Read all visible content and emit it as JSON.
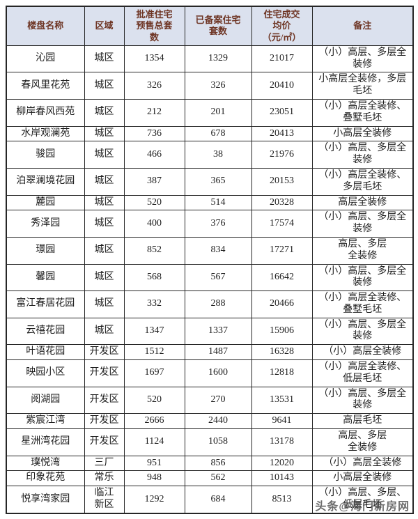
{
  "table": {
    "header_keys": [
      "name",
      "region",
      "approved",
      "registered",
      "price",
      "remark"
    ],
    "headers": [
      "楼盘名称",
      "区域",
      "批准住宅\n预售总套\n数",
      "已备案住宅\n套数",
      "住宅成交\n均价\n（元/㎡）",
      "备注"
    ],
    "rows": [
      {
        "name": "沁园",
        "region": "城区",
        "approved": "1354",
        "registered": "1329",
        "price": "21017",
        "remark": "（小）高层、多层全\n装修"
      },
      {
        "name": "春风里花苑",
        "region": "城区",
        "approved": "326",
        "registered": "326",
        "price": "20410",
        "remark": "小高层全装修，多层\n毛坯"
      },
      {
        "name": "柳岸春风西苑",
        "region": "城区",
        "approved": "212",
        "registered": "201",
        "price": "23051",
        "remark": "（小）高层全装修、\n叠墅毛坯"
      },
      {
        "name": "水岸观澜苑",
        "region": "城区",
        "approved": "736",
        "registered": "678",
        "price": "20413",
        "remark": "小高层全装修"
      },
      {
        "name": "骏园",
        "region": "城区",
        "approved": "466",
        "registered": "38",
        "price": "21976",
        "remark": "（小）高层、多层全\n装修"
      },
      {
        "name": "泊翠澜境花园",
        "region": "城区",
        "approved": "387",
        "registered": "365",
        "price": "20153",
        "remark": "（小）高层全装修、\n多层毛坯"
      },
      {
        "name": "麓园",
        "region": "城区",
        "approved": "520",
        "registered": "514",
        "price": "20328",
        "remark": "高层全装修"
      },
      {
        "name": "秀泽园",
        "region": "城区",
        "approved": "400",
        "registered": "376",
        "price": "17574",
        "remark": "（小）高层、多层全\n装修"
      },
      {
        "name": "璟园",
        "region": "城区",
        "approved": "852",
        "registered": "834",
        "price": "17271",
        "remark": "高层、多层\n全装修"
      },
      {
        "name": "馨园",
        "region": "城区",
        "approved": "568",
        "registered": "567",
        "price": "16642",
        "remark": "（小）高层、多层全\n装修"
      },
      {
        "name": "富江春居花园",
        "region": "城区",
        "approved": "332",
        "registered": "288",
        "price": "20466",
        "remark": "（小）高层全装修、\n叠墅毛坯"
      },
      {
        "name": "云禧花园",
        "region": "城区",
        "approved": "1347",
        "registered": "1337",
        "price": "15906",
        "remark": "（小）高层、多层全\n装修"
      },
      {
        "name": "叶语花园",
        "region": "开发区",
        "approved": "1512",
        "registered": "1487",
        "price": "16328",
        "remark": "（小）高层全装修"
      },
      {
        "name": "映园小区",
        "region": "开发区",
        "approved": "1697",
        "registered": "1600",
        "price": "12818",
        "remark": "（小）高层全装修、\n低层毛坯"
      },
      {
        "name": "阅湖园",
        "region": "开发区",
        "approved": "520",
        "registered": "270",
        "price": "13531",
        "remark": "（小）高层、多层全\n装修"
      },
      {
        "name": "紫宸江湾",
        "region": "开发区",
        "approved": "2666",
        "registered": "2440",
        "price": "9641",
        "remark": "高层毛坯"
      },
      {
        "name": "星洲湾花园",
        "region": "开发区",
        "approved": "1124",
        "registered": "1058",
        "price": "13178",
        "remark": "高层、多层\n全装修"
      },
      {
        "name": "璞悦湾",
        "region": "三厂",
        "approved": "951",
        "registered": "856",
        "price": "12020",
        "remark": "（小）高层全装修"
      },
      {
        "name": "印象花苑",
        "region": "常乐",
        "approved": "948",
        "registered": "562",
        "price": "10143",
        "remark": "小高层全装修"
      },
      {
        "name": "悦享湾家园",
        "region": "临江\n新区",
        "approved": "1292",
        "registered": "684",
        "price": "8513",
        "remark": "（小）高层、多层、\n低层毛坯"
      }
    ]
  },
  "watermark": {
    "text": "头条@海门新房网"
  },
  "colors": {
    "header_bg": "#dbe1ee",
    "header_text": "#6e3524",
    "border": "#262626",
    "body_text": "#1c1c1c",
    "watermark": "#4a4a4a"
  }
}
